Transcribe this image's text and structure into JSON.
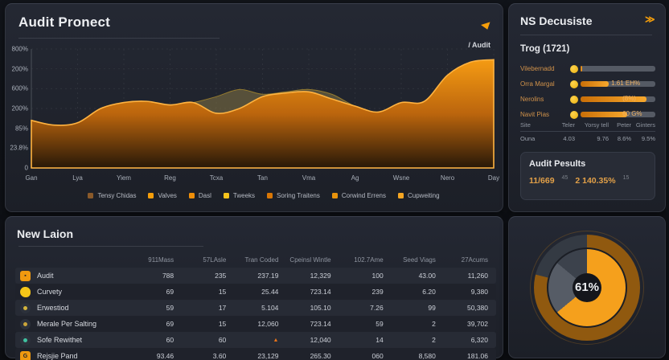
{
  "accent": "#f59e0b",
  "chart_panel": {
    "title": "Audit Pronect",
    "series_label": "/ Audit"
  },
  "chart_data": {
    "type": "area",
    "title": "Audit Pronect",
    "x_ticks": [
      "Gan",
      "Lya",
      "Yiem",
      "Reg",
      "Tcxa",
      "Tan",
      "Vma",
      "Ag",
      "Wsne",
      "Nero",
      "Day"
    ],
    "y_ticks": [
      "800%",
      "200%",
      "600%",
      "200%",
      "85%",
      "23.8%",
      "0"
    ],
    "ylim": [
      0,
      100
    ],
    "grid": true,
    "legend_position": "bottom",
    "series": [
      {
        "name": "Audit",
        "color": "#f7941d",
        "values": [
          40,
          36,
          38,
          50,
          55,
          56,
          53,
          55,
          46,
          50,
          60,
          63,
          64,
          58,
          52,
          47,
          55,
          56,
          78,
          89,
          91
        ]
      },
      {
        "name": "Overlay",
        "color": "#8d7b45",
        "values": [
          40,
          36,
          38,
          50,
          55,
          56,
          53,
          55,
          60,
          66,
          62,
          64,
          66,
          62,
          52,
          47,
          55,
          56,
          78,
          89,
          91
        ]
      }
    ],
    "legend": [
      {
        "label": "Tensy Chidas",
        "color": "#8a5a2a"
      },
      {
        "label": "Valves",
        "color": "#f59e0b"
      },
      {
        "label": "Dasl",
        "color": "#ef8f0a"
      },
      {
        "label": "Tweeks",
        "color": "#f5c31c"
      },
      {
        "label": "Soring Traitens",
        "color": "#d97706"
      },
      {
        "label": "Corwind Errens",
        "color": "#e8930c"
      },
      {
        "label": "Cupweiting",
        "color": "#f5a623"
      }
    ]
  },
  "right_panel": {
    "title": "NS Decusiste",
    "filter_icon": "double-chevron",
    "section_label": "Trog (1721)",
    "progress": [
      {
        "label": "Vilebernadd",
        "value": 2,
        "value_label": ""
      },
      {
        "label": "Orra Margal",
        "value": 38,
        "value_label": "1.61 EH%"
      },
      {
        "label": "Nerolins",
        "value": 88,
        "value_label": "(8%)"
      },
      {
        "label": "Navit Pias",
        "value": 62,
        "value_label": "60 G%"
      }
    ],
    "mini_table": {
      "headers": [
        "Site",
        "Teler",
        "Yorsy tell",
        "Peter",
        "Ginters"
      ],
      "row": [
        "Ouna",
        "4.03",
        "9.76",
        "8.6%",
        "9.5%"
      ]
    },
    "results": {
      "title": "Audit Pesults",
      "value1": "11/669",
      "note1": "45",
      "value2": "2 140.35%",
      "note2": "15"
    }
  },
  "table_panel": {
    "title": "New Laion",
    "headers": [
      "911Mass",
      "57LAsle",
      "Tran Coded",
      "Cpeinsl Wintle",
      "102.7Ame",
      "Seed Viags",
      "27Acums"
    ],
    "rows": [
      {
        "label": "Audit",
        "icon": {
          "shape": "square",
          "color": "#f0990f",
          "glyph": "▪"
        },
        "cells": [
          "788",
          "235",
          "237.19",
          "12,329",
          "100",
          "43.00",
          "11,260"
        ]
      },
      {
        "label": "Curvety",
        "icon": {
          "shape": "blob",
          "color": "#f5c518",
          "glyph": ""
        },
        "cells": [
          "69",
          "15",
          "25.44",
          "723.14",
          "239",
          "6.20",
          "9,380"
        ]
      },
      {
        "label": "Erwestiod",
        "icon": {
          "shape": "circle",
          "color": "#d3b43c",
          "glyph": ""
        },
        "cells": [
          "59",
          "17",
          "5.104",
          "105.10",
          "7.26",
          "99",
          "50,380"
        ]
      },
      {
        "label": "Merale Per Salting",
        "icon": {
          "shape": "circle",
          "color": "#caa53a",
          "glyph": ""
        },
        "cells": [
          "69",
          "15",
          "12,060",
          "723.14",
          "59",
          "2",
          "39,702"
        ]
      },
      {
        "label": "Sofe Rewithet",
        "icon": {
          "shape": "circle",
          "color": "#3fc1a0",
          "glyph": ""
        },
        "cells": [
          "60",
          "60",
          "▲",
          "12,040",
          "14",
          "2",
          "6,320"
        ]
      },
      {
        "label": "Rejsjie Pand",
        "icon": {
          "shape": "square",
          "color": "#f0990f",
          "glyph": "G"
        },
        "cells": [
          "93.46",
          "3.60",
          "23,129",
          "265.30",
          "060",
          "8,580",
          "181.06"
        ]
      }
    ]
  },
  "donut": {
    "type": "donut",
    "center_label": "61%",
    "outer_ring": [
      {
        "name": "filled",
        "value": 79,
        "color": "#90590f"
      },
      {
        "name": "rest",
        "value": 21,
        "color": "#343a43"
      }
    ],
    "inner_ring": [
      {
        "name": "complete",
        "value": 64,
        "color": "#f5a01c"
      },
      {
        "name": "pending",
        "value": 22,
        "color": "#565c66"
      },
      {
        "name": "empty",
        "value": 14,
        "color": "#3c424c"
      }
    ]
  }
}
